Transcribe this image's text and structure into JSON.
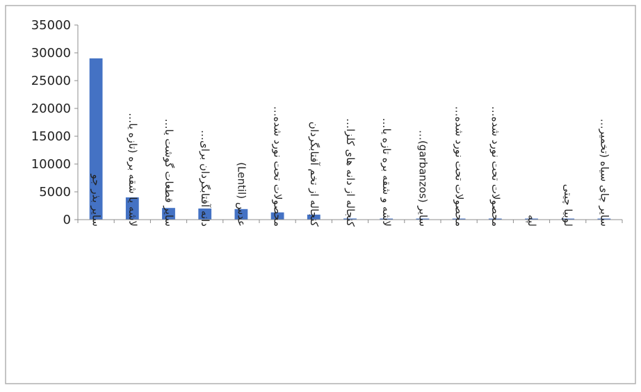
{
  "chart_data": {
    "type": "bar",
    "title": "",
    "xlabel": "",
    "ylabel": "",
    "ylim": [
      0,
      35000
    ],
    "yticks": [
      0,
      5000,
      10000,
      15000,
      20000,
      25000,
      30000,
      35000
    ],
    "grid": false,
    "legend": "none",
    "bar_color": "#4472C4",
    "categories": [
      "سایر بذر جو",
      "لاشه یا شقه بره (تازه یا…",
      "سایر قطعات گوشت یا…",
      "دانه آفتابگردان برای…",
      "عدس (Lentil)",
      "محصولات تحت نورد شده…",
      "کنجاله از تخم آفتابگردان",
      "کنجاله از دانه های کلزا…",
      "لاشه و شقه بره تازه یا…",
      "سایر (garbanzos)…",
      "محصولات تحت نورد شده…",
      "محصولات تحت نورد شده…",
      "لپه",
      "لوبیا چیتی",
      "سایر چای سیاه (تخمیر…"
    ],
    "values": [
      29000,
      4000,
      2100,
      2000,
      1900,
      1300,
      900,
      200,
      60,
      60,
      40,
      30,
      20,
      15,
      10
    ]
  }
}
